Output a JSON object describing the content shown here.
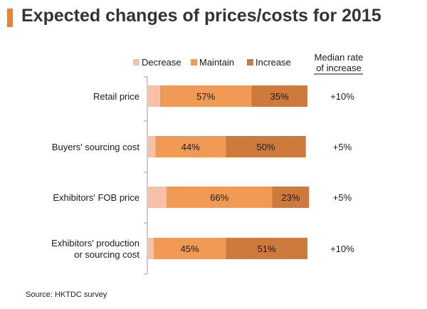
{
  "title": "Expected changes of prices/costs for 2015",
  "source": "Source: HKTDC  survey",
  "colors": {
    "accent": "#e8823a",
    "decrease": "#f6c1a6",
    "maintain": "#f09a55",
    "increase": "#cd7a3c"
  },
  "chart_data": {
    "type": "bar",
    "orientation": "horizontal-stacked-100",
    "title": "Expected changes of prices/costs for 2015",
    "legend_position": "top",
    "legend": [
      "Decrease",
      "Maintain",
      "Increase"
    ],
    "categories": [
      [
        "Retail price"
      ],
      [
        "Buyers' sourcing cost"
      ],
      [
        "Exhibitors' FOB price"
      ],
      [
        "Exhibitors' production",
        "or sourcing cost"
      ]
    ],
    "series": [
      {
        "name": "Decrease",
        "values": [
          8,
          5,
          12,
          4
        ]
      },
      {
        "name": "Maintain",
        "values": [
          57,
          44,
          66,
          45
        ]
      },
      {
        "name": "Increase",
        "values": [
          35,
          50,
          23,
          51
        ]
      }
    ],
    "data_labels": {
      "Maintain": [
        "57%",
        "44%",
        "66%",
        "45%"
      ],
      "Increase": [
        "35%",
        "50%",
        "23%",
        "51%"
      ]
    },
    "median_rate_header": [
      "Median rate",
      "of increase"
    ],
    "median_rate": [
      "+10%",
      "+5%",
      "+5%",
      "+10%"
    ],
    "xlim": [
      0,
      100
    ]
  }
}
